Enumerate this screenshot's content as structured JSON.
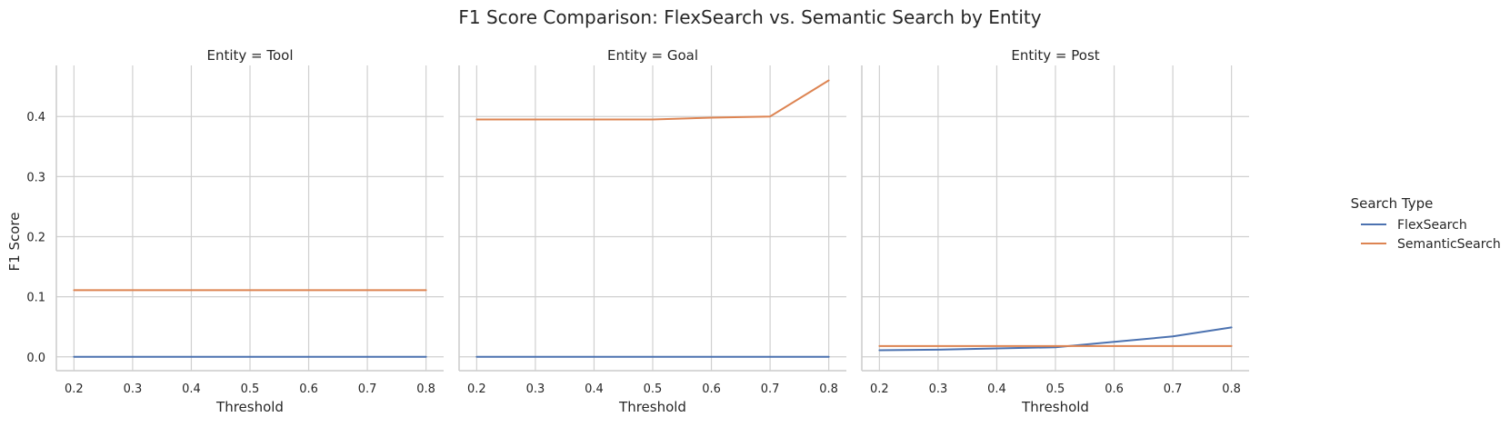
{
  "chart_data": {
    "type": "line",
    "title": "F1 Score Comparison: FlexSearch vs. Semantic Search by Entity",
    "xlabel": "Threshold",
    "ylabel": "F1 Score",
    "xlim": [
      0.17,
      0.83
    ],
    "ylim": [
      -0.023,
      0.485
    ],
    "x_ticks": [
      "0.2",
      "0.3",
      "0.4",
      "0.5",
      "0.6",
      "0.7",
      "0.8"
    ],
    "y_ticks": [
      "0.0",
      "0.1",
      "0.2",
      "0.3",
      "0.4"
    ],
    "grid": true,
    "legend": {
      "title": "Search Type",
      "placement": "right",
      "entries": [
        "FlexSearch",
        "SemanticSearch"
      ]
    },
    "colors": {
      "FlexSearch": "#4c72b0",
      "SemanticSearch": "#dd8452"
    },
    "x": [
      0.2,
      0.3,
      0.4,
      0.5,
      0.6,
      0.7,
      0.8
    ],
    "panels": [
      {
        "title": "Entity = Tool",
        "series": [
          {
            "name": "FlexSearch",
            "values": [
              0.0,
              0.0,
              0.0,
              0.0,
              0.0,
              0.0,
              0.0
            ]
          },
          {
            "name": "SemanticSearch",
            "values": [
              0.111,
              0.111,
              0.111,
              0.111,
              0.111,
              0.111,
              0.111
            ]
          }
        ]
      },
      {
        "title": "Entity = Goal",
        "series": [
          {
            "name": "FlexSearch",
            "values": [
              0.0,
              0.0,
              0.0,
              0.0,
              0.0,
              0.0,
              0.0
            ]
          },
          {
            "name": "SemanticSearch",
            "values": [
              0.395,
              0.395,
              0.395,
              0.395,
              0.398,
              0.4,
              0.46
            ]
          }
        ]
      },
      {
        "title": "Entity = Post",
        "series": [
          {
            "name": "FlexSearch",
            "values": [
              0.011,
              0.012,
              0.014,
              0.016,
              0.025,
              0.034,
              0.049
            ]
          },
          {
            "name": "SemanticSearch",
            "values": [
              0.018,
              0.018,
              0.018,
              0.018,
              0.018,
              0.018,
              0.018
            ]
          }
        ]
      }
    ]
  }
}
